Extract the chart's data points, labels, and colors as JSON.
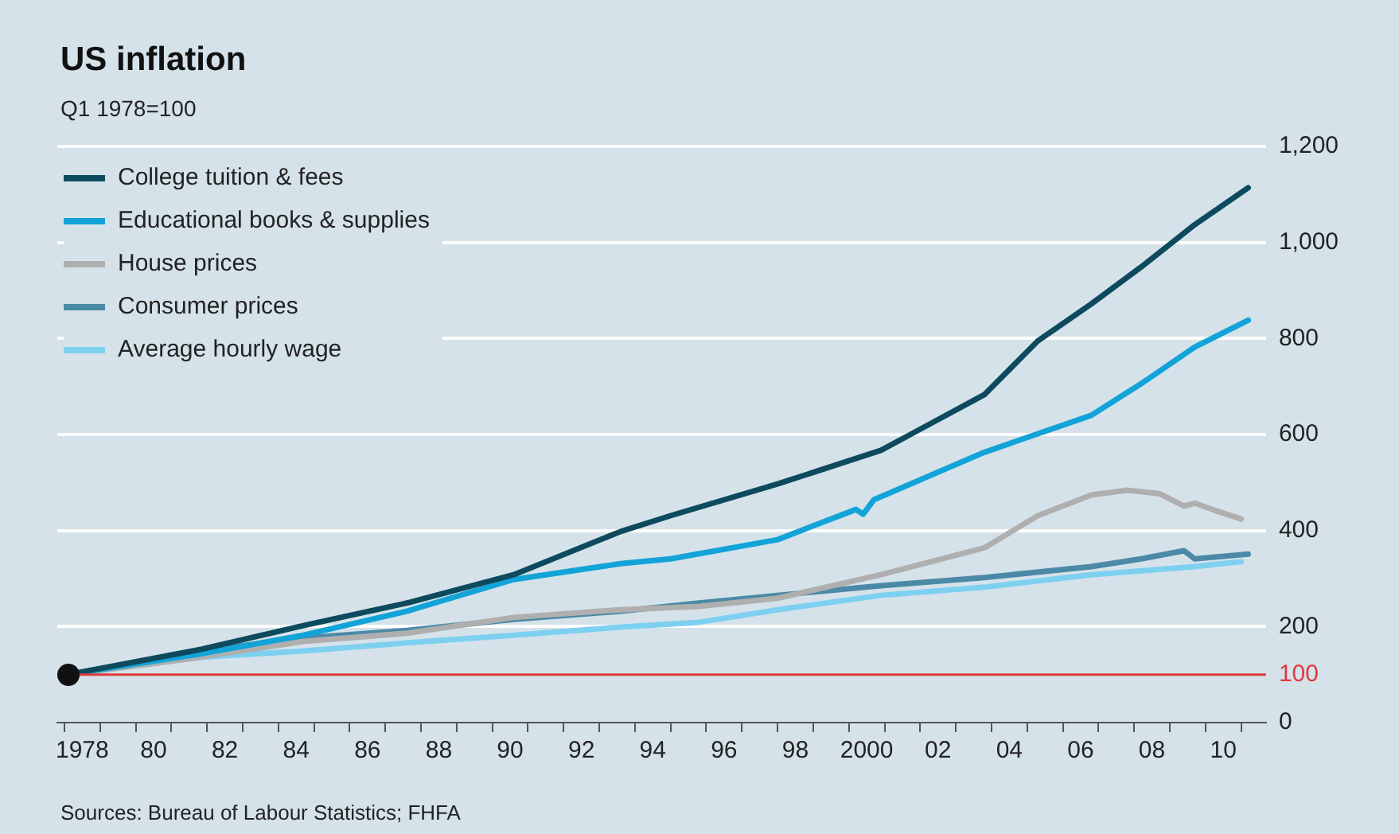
{
  "chart_data": {
    "type": "line",
    "title": "US inflation",
    "subtitle": "Q1 1978=100",
    "annotations": [
      "Sources: Bureau of Labour Statistics; FHFA"
    ],
    "series": [
      {
        "name": "College tuition & fees",
        "color": "#0d4a5e",
        "x": [
          1977.6,
          1981.3,
          1984.2,
          1987.1,
          1990.1,
          1993.1,
          1994.5,
          1997.5,
          2000.4,
          2001.4,
          2003.3,
          2004.8,
          2006.3,
          2007.7,
          2009.2,
          2010.7
        ],
        "values": [
          100,
          152,
          202,
          249,
          308,
          398,
          431,
          497,
          567,
          607,
          683,
          795,
          872,
          949,
          1037,
          1114
        ]
      },
      {
        "name": "Educational books & supplies",
        "color": "#12a3d8",
        "x": [
          1977.6,
          1981.3,
          1984.2,
          1987.1,
          1990.1,
          1993.1,
          1994.5,
          1997.5,
          1999.7,
          1999.9,
          2000.2,
          2003.3,
          2006.3,
          2007.7,
          2009.2,
          2010.7
        ],
        "values": [
          100,
          143,
          182,
          232,
          298,
          331,
          341,
          381,
          444,
          434,
          464,
          563,
          640,
          706,
          782,
          838
        ]
      },
      {
        "name": "House prices",
        "color": "#afafaf",
        "x": [
          1977.6,
          1981.3,
          1984.2,
          1987.1,
          1990.1,
          1993.1,
          1995.3,
          1997.5,
          2000.4,
          2003.3,
          2004.8,
          2006.3,
          2007.3,
          2008.2,
          2008.9,
          2009.2,
          2009.8,
          2010.5
        ],
        "values": [
          100,
          136,
          169,
          186,
          219,
          235,
          242,
          259,
          308,
          364,
          431,
          474,
          484,
          477,
          451,
          457,
          441,
          424
        ]
      },
      {
        "name": "Consumer prices",
        "color": "#4a8aa6",
        "x": [
          1977.6,
          1981.3,
          1984.2,
          1987.1,
          1990.1,
          1993.1,
          1995.3,
          1997.5,
          2000.4,
          2003.3,
          2006.3,
          2007.7,
          2008.9,
          2009.2,
          2010.7
        ],
        "values": [
          100,
          149,
          176,
          192,
          215,
          232,
          249,
          265,
          285,
          302,
          325,
          341,
          358,
          341,
          351
        ]
      },
      {
        "name": "Average hourly wage",
        "color": "#7ed0f0",
        "x": [
          1977.6,
          1981.3,
          1984.2,
          1987.1,
          1990.1,
          1993.1,
          1995.3,
          1997.5,
          2000.4,
          2003.3,
          2006.3,
          2009.2,
          2010.5
        ],
        "values": [
          100,
          136,
          149,
          166,
          182,
          199,
          209,
          235,
          265,
          282,
          308,
          325,
          335
        ]
      }
    ],
    "xlim": [
      1977.3,
      2011.2
    ],
    "xticks": [
      1978,
      {
        "value": 1980,
        "label": "80"
      },
      {
        "value": 1982,
        "label": "82"
      },
      {
        "value": 1984,
        "label": "84"
      },
      {
        "value": 1986,
        "label": "86"
      },
      {
        "value": 1988,
        "label": "88"
      },
      {
        "value": 1990,
        "label": "90"
      },
      {
        "value": 1992,
        "label": "92"
      },
      {
        "value": 1994,
        "label": "94"
      },
      {
        "value": 1996,
        "label": "96"
      },
      {
        "value": 1998,
        "label": "98"
      },
      2000,
      {
        "value": 2002,
        "label": "02"
      },
      {
        "value": 2004,
        "label": "04"
      },
      {
        "value": 2006,
        "label": "06"
      },
      {
        "value": 2008,
        "label": "08"
      },
      {
        "value": 2010,
        "label": "10"
      },
      {
        "value": 1977.5,
        "label": null
      },
      {
        "value": 1978.5,
        "label": null
      },
      {
        "value": 1979.5,
        "label": null
      },
      {
        "value": 1980.5,
        "label": null
      },
      {
        "value": 1981.5,
        "label": null
      },
      {
        "value": 1982.5,
        "label": null
      },
      {
        "value": 1983.5,
        "label": null
      },
      {
        "value": 1984.5,
        "label": null
      },
      {
        "value": 1985.5,
        "label": null
      },
      {
        "value": 1986.5,
        "label": null
      },
      {
        "value": 1987.5,
        "label": null
      },
      {
        "value": 1988.5,
        "label": null
      },
      {
        "value": 1989.5,
        "label": null
      },
      {
        "value": 1990.5,
        "label": null
      },
      {
        "value": 1991.5,
        "label": null
      },
      {
        "value": 1992.5,
        "label": null
      },
      {
        "value": 1993.5,
        "label": null
      },
      {
        "value": 1994.5,
        "label": null
      },
      {
        "value": 1995.5,
        "label": null
      },
      {
        "value": 1996.5,
        "label": null
      },
      {
        "value": 1997.5,
        "label": null
      },
      {
        "value": 1998.5,
        "label": null
      },
      {
        "value": 1999.5,
        "label": null
      },
      {
        "value": 2000.5,
        "label": null
      },
      {
        "value": 2001.5,
        "label": null
      },
      {
        "value": 2002.5,
        "label": null
      },
      {
        "value": 2003.5,
        "label": null
      },
      {
        "value": 2004.5,
        "label": null
      },
      {
        "value": 2005.5,
        "label": null
      },
      {
        "value": 2006.5,
        "label": null
      },
      {
        "value": 2007.5,
        "label": null
      },
      {
        "value": 2008.5,
        "label": null
      },
      {
        "value": 2009.5,
        "label": null
      },
      {
        "value": 2010.5,
        "label": null
      }
    ],
    "ylim": [
      0,
      1200
    ],
    "yticks": [
      0,
      200,
      400,
      600,
      800,
      {
        "value": 1000,
        "label": "1,000"
      },
      {
        "value": 1200,
        "label": "1,200"
      }
    ],
    "ref_lines": [
      {
        "axis": "y",
        "value": 100,
        "label": "100",
        "color": "#e0393b"
      }
    ],
    "grid": "y",
    "legend": "top left",
    "marker": "none",
    "line_style": "solid"
  }
}
